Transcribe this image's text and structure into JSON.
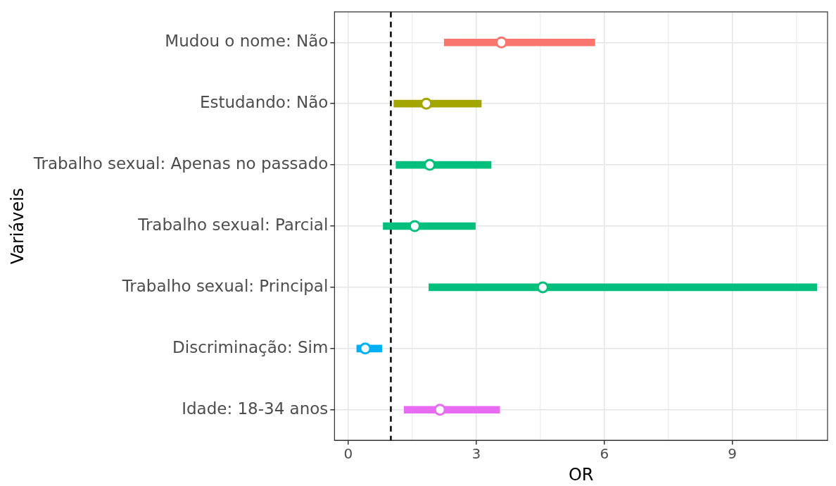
{
  "chart_data": {
    "type": "bar",
    "orientation": "horizontal",
    "xlabel": "OR",
    "ylabel": "Variáveis",
    "categories": [
      "Mudou o nome: Não",
      "Estudando: Não",
      "Trabalho sexual: Apenas no passado",
      "Trabalho sexual: Parcial",
      "Trabalho sexual: Principal",
      "Discriminação: Sim",
      "Idade: 18-34 anos"
    ],
    "series": [
      {
        "base": [
          2.25,
          1.07,
          1.12,
          0.82,
          1.89,
          0.2,
          1.31
        ],
        "values": [
          3.53,
          2.05,
          2.23,
          2.16,
          9.09,
          0.59,
          2.24
        ],
        "colors": [
          "#f8766d",
          "#a3a500",
          "#00bf7d",
          "#00bf7d",
          "#00bf7d",
          "#00b0f6",
          "#e76bf3"
        ]
      },
      {
        "type": "scatter",
        "values": [
          3.59,
          1.83,
          1.91,
          1.56,
          4.56,
          0.4,
          2.15
        ],
        "colors": [
          "#f8766d",
          "#a3a500",
          "#00bf7d",
          "#00bf7d",
          "#00bf7d",
          "#00b0f6",
          "#e76bf3"
        ]
      }
    ],
    "xlim": [
      -0.32,
      11.23
    ],
    "xticks": [
      0,
      {
        "value": 1.5,
        "label": null
      },
      3,
      {
        "value": 4.5,
        "label": null
      },
      6,
      {
        "value": 7.5,
        "label": null
      },
      9,
      {
        "value": 10.5,
        "label": null
      }
    ],
    "grid": true,
    "marker": "circle",
    "ref_lines": [
      {
        "axis": "x",
        "value": 1,
        "line_style": "dashed",
        "color": "#000000"
      }
    ]
  }
}
